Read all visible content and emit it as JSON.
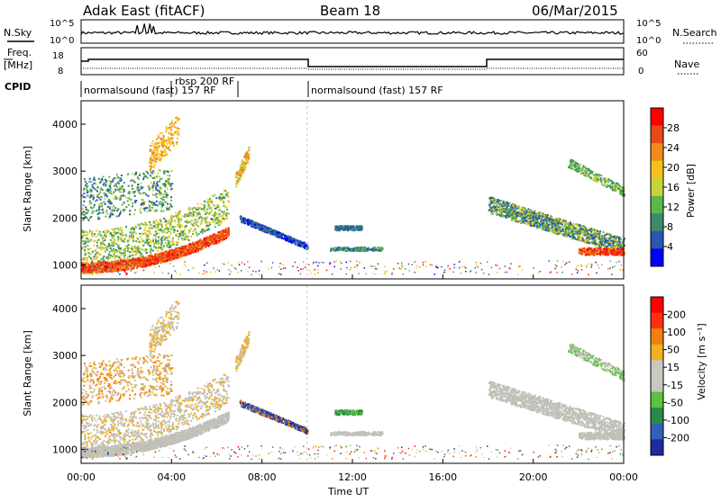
{
  "header": {
    "title": "Adak East (fitACF)",
    "beam": "Beam 18",
    "date": "06/Mar/2015"
  },
  "panels": {
    "nsky": {
      "label": "N.Sky",
      "ticks": [
        "10^5",
        "10^0"
      ],
      "right_ticks": [
        "10^5",
        "10^0"
      ],
      "right_label": "N.Search"
    },
    "freq": {
      "label_line1": "Freq.",
      "label_line2": "[MHz]",
      "ticks": [
        "18",
        "8"
      ],
      "right_ticks": [
        "60",
        "0"
      ],
      "right_label": "Nave"
    },
    "cpid": {
      "label": "CPID",
      "segments": [
        "normalsound (fast) 157 RF",
        "rbsp 200 RF",
        "normalsound (fast) 157 RF"
      ]
    }
  },
  "chart_data": [
    {
      "type": "heatmap",
      "name": "power",
      "ylabel": "Slant Range [km]",
      "ylim": [
        700,
        4500
      ],
      "y_ticks": [
        "1000",
        "2000",
        "3000",
        "4000"
      ],
      "colorbar": {
        "label": "Power [dB]",
        "ticks": [
          "4",
          "8",
          "12",
          "16",
          "20",
          "24",
          "28"
        ],
        "colors": [
          "#0000ff",
          "#2a55b0",
          "#3c8a6a",
          "#5cb84a",
          "#c8d23a",
          "#f5c21c",
          "#f08a1a",
          "#e84a1a",
          "#ff0000"
        ]
      }
    },
    {
      "type": "heatmap",
      "name": "velocity",
      "ylabel": "Slant Range [km]",
      "ylim": [
        700,
        4500
      ],
      "y_ticks": [
        "1000",
        "2000",
        "3000",
        "4000"
      ],
      "colorbar": {
        "label": "Velocity [m s⁻¹]",
        "ticks": [
          "200",
          "100",
          "50",
          "15",
          "-15",
          "-50",
          "-100",
          "-200"
        ],
        "colors": [
          "#1e2aa0",
          "#3060b8",
          "#2a8a4a",
          "#5cc040",
          "#c8c8c0",
          "#c8c8c0",
          "#f0b020",
          "#f08010",
          "#ff3010",
          "#ff0000"
        ]
      }
    }
  ],
  "time_axis": {
    "xlabel": "Time UT",
    "ticks": [
      "00:00",
      "04:00",
      "08:00",
      "12:00",
      "16:00",
      "20:00",
      "00:00"
    ],
    "xlim_hours": [
      0,
      24
    ]
  },
  "colors": {
    "ground_scatter": "#c0c0b8",
    "axis": "#000000"
  }
}
